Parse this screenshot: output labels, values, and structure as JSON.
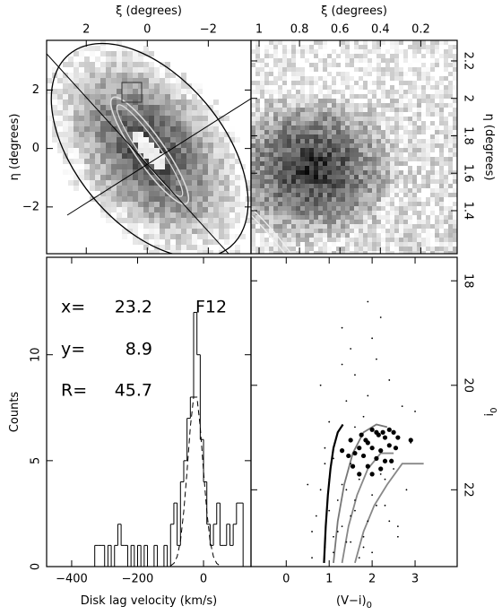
{
  "chart_data": [
    {
      "type": "image",
      "x_label": "ξ (degrees)",
      "y_label": "η (degrees)",
      "xlim": [
        3.3,
        -3.4
      ],
      "xticks": [
        2,
        0,
        {
          "value": -2,
          "label": "−2"
        }
      ],
      "ylim": [
        -3.6,
        3.7
      ],
      "yticks": [
        2,
        0,
        {
          "value": -2,
          "label": "−2"
        }
      ]
    },
    {
      "type": "image",
      "x_label": "ξ (degrees)",
      "y_label": "η (degrees)",
      "xlim": [
        1.04,
        0.02
      ],
      "xticks": [
        1,
        0.8,
        0.6,
        0.4,
        0.2
      ],
      "ylim": [
        1.17,
        2.31
      ],
      "yticks": [
        1.4,
        1.6,
        1.8,
        2,
        2.2
      ]
    },
    {
      "type": "histogram",
      "x_label": "Disk lag velocity (km/s)",
      "y_label": "Counts",
      "xlim": [
        -476,
        144
      ],
      "xticks": [
        {
          "value": -400,
          "label": "−400"
        },
        {
          "value": -200,
          "label": "−200"
        },
        0
      ],
      "ylim": [
        0,
        14.6
      ],
      "yticks": [
        0,
        5,
        10
      ],
      "bins": [
        -340,
        -330,
        -320,
        -310,
        -300,
        -290,
        -280,
        -270,
        -260,
        -250,
        -240,
        -230,
        -220,
        -210,
        -200,
        -190,
        -180,
        -170,
        -160,
        -150,
        -140,
        -130,
        -120,
        -110,
        -100,
        -90,
        -80,
        -70,
        -60,
        -50,
        -40,
        -30,
        -20,
        -10,
        0,
        10,
        20,
        30,
        40,
        50,
        60,
        70,
        80,
        90,
        100,
        110,
        120,
        130,
        140
      ],
      "counts": [
        0,
        1,
        1,
        1,
        0,
        1,
        0,
        1,
        2,
        1,
        1,
        0,
        1,
        0,
        1,
        0,
        1,
        0,
        0,
        1,
        0,
        0,
        1,
        0,
        2,
        3,
        1,
        4,
        5,
        7,
        8,
        12,
        10,
        6,
        4,
        2,
        1,
        2,
        3,
        1,
        1,
        2,
        1,
        2,
        3,
        3,
        0,
        0
      ],
      "fit": {
        "x": [
          -100,
          -90,
          -80,
          -70,
          -60,
          -50,
          -40,
          -30,
          -20,
          -10,
          0,
          10,
          20,
          30,
          40,
          50
        ],
        "values": [
          0.04,
          0.15,
          0.47,
          1.2,
          2.6,
          4.5,
          6.6,
          8.0,
          8.0,
          6.6,
          4.5,
          2.6,
          1.2,
          0.47,
          0.15,
          0.04
        ]
      },
      "annotations": [
        {
          "name": "x=",
          "value": 23.2
        },
        {
          "name": "y=",
          "value": 8.9
        },
        {
          "name": "R=",
          "value": 45.7
        }
      ],
      "field": "F12"
    },
    {
      "type": "scatter",
      "x_label": "(V−i)",
      "x_label_sub": "0",
      "y_label": "i",
      "y_label_sub": "0",
      "xlim": [
        -0.82,
        3.98
      ],
      "xticks": [
        0,
        1,
        2,
        3
      ],
      "ylim": [
        23.47,
        17.55
      ],
      "yticks": [
        18,
        20,
        22
      ],
      "points_small": {
        "color": "#000000",
        "x": [
          1.2,
          0.9,
          1.5,
          1.8,
          2.1,
          0.6,
          1.3,
          2.4,
          1.0,
          1.7,
          1.4,
          2.0,
          2.6,
          0.8,
          1.1,
          1.6,
          2.2,
          1.9,
          1.3,
          0.7,
          1.5,
          2.3,
          2.8,
          1.2,
          1.8,
          1.0,
          2.5,
          1.6,
          0.9,
          2.1,
          1.4,
          1.7,
          1.1,
          2.0,
          2.7,
          1.3,
          0.5,
          1.9,
          2.4,
          1.6,
          1.8,
          1.2,
          2.2,
          0.8,
          1.5,
          3.0,
          1.0,
          2.6,
          1.4,
          1.7,
          2.0,
          0.6,
          1.3,
          2.3,
          1.1,
          1.9,
          2.9,
          1.6,
          0.9,
          1.5
        ],
        "values": [
          22.8,
          23.1,
          22.5,
          22.9,
          22.3,
          23.3,
          21.9,
          22.6,
          22.4,
          21.8,
          23.0,
          22.1,
          22.7,
          22.0,
          23.2,
          22.2,
          21.7,
          22.6,
          22.7,
          22.5,
          21.5,
          22.3,
          22.0,
          20.9,
          20.6,
          21.8,
          21.6,
          19.8,
          21.2,
          19.5,
          20.3,
          23.3,
          22.9,
          19.1,
          20.4,
          18.9,
          21.9,
          18.4,
          19.9,
          20.8,
          23.1,
          22.2,
          18.7,
          20.0,
          19.3,
          20.5,
          20.7,
          22.9,
          22.0,
          21.2,
          23.2,
          22.8,
          19.6,
          21.8,
          21.4,
          20.2,
          21.1,
          22.4,
          21.5,
          23.0
        ]
      },
      "points_large": {
        "color": "#000000",
        "x": [
          1.75,
          1.85,
          2.0,
          2.1,
          2.15,
          2.25,
          2.4,
          2.5,
          2.6,
          2.9,
          2.3,
          1.9,
          1.7,
          1.6,
          2.0,
          2.2,
          2.4,
          2.55,
          1.45,
          1.8,
          2.1,
          2.3,
          1.55,
          1.9,
          2.0,
          1.7,
          2.2,
          1.3,
          1.5,
          2.45
        ],
        "values": [
          20.95,
          21.05,
          20.85,
          20.9,
          20.95,
          20.9,
          20.85,
          20.9,
          21.0,
          21.05,
          21.0,
          21.1,
          21.2,
          21.3,
          21.2,
          21.25,
          21.15,
          21.2,
          21.35,
          21.35,
          21.4,
          21.45,
          21.55,
          21.55,
          21.7,
          21.7,
          21.6,
          21.25,
          21.05,
          21.45
        ]
      },
      "curves": [
        {
          "color": "#000000",
          "x": [
            0.88,
            0.92,
            0.97,
            1.03,
            1.1,
            1.2,
            1.32
          ],
          "values": [
            23.4,
            22.7,
            22.1,
            21.6,
            21.2,
            20.9,
            20.75
          ]
        },
        {
          "color": "#777777",
          "x": [
            1.1,
            1.2,
            1.35,
            1.55,
            1.8,
            2.1,
            2.35
          ],
          "values": [
            23.4,
            22.6,
            21.9,
            21.3,
            20.9,
            20.75,
            20.8
          ]
        },
        {
          "color": "#888888",
          "x": [
            1.3,
            1.45,
            1.65,
            1.9,
            2.2,
            2.5
          ],
          "values": [
            23.4,
            22.7,
            22.1,
            21.6,
            21.3,
            21.3
          ]
        },
        {
          "color": "#888888",
          "x": [
            1.6,
            1.8,
            2.05,
            2.35,
            2.7,
            3.2
          ],
          "values": [
            23.4,
            22.8,
            22.3,
            21.9,
            21.5,
            21.5
          ]
        }
      ]
    }
  ]
}
